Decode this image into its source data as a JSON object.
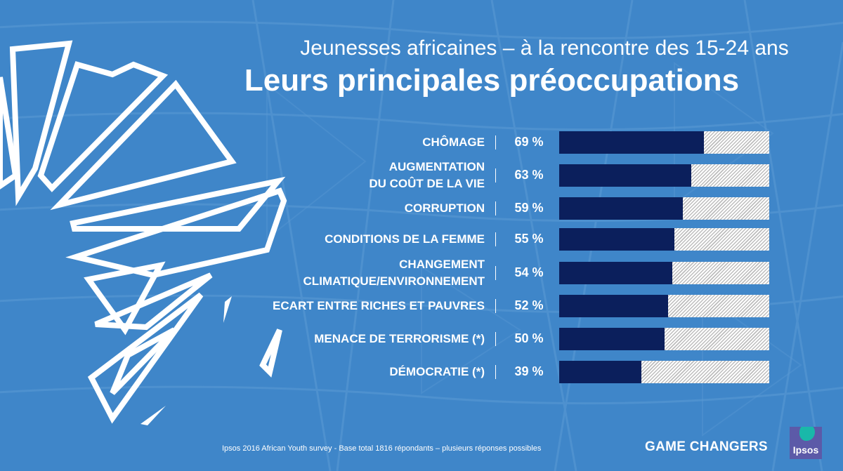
{
  "header": {
    "subtitle": "Jeunesses africaines – à la rencontre des 15-24 ans",
    "title": "Leurs principales préoccupations"
  },
  "chart_data": {
    "type": "bar",
    "orientation": "horizontal",
    "categories": [
      "CHÔMAGE",
      "AUGMENTATION DU COÛT DE LA VIE",
      "CORRUPTION",
      "CONDITIONS DE LA FEMME",
      "CHANGEMENT CLIMATIQUE/ENVIRONNEMENT",
      "ECART ENTRE RICHES ET PAUVRES",
      "MENACE DE TERRORISME (*)",
      "DÉMOCRATIE (*)"
    ],
    "rows": [
      {
        "label_line1": "CHÔMAGE",
        "label_line2": "",
        "value": 69,
        "value_label": "69 %"
      },
      {
        "label_line1": "AUGMENTATION",
        "label_line2": "DU COÛT DE LA VIE",
        "value": 63,
        "value_label": "63 %"
      },
      {
        "label_line1": "CORRUPTION",
        "label_line2": "",
        "value": 59,
        "value_label": "59 %"
      },
      {
        "label_line1": "CONDITIONS DE LA FEMME",
        "label_line2": "",
        "value": 55,
        "value_label": "55 %"
      },
      {
        "label_line1": "CHANGEMENT",
        "label_line2": "CLIMATIQUE/ENVIRONNEMENT",
        "value": 54,
        "value_label": "54 %"
      },
      {
        "label_line1": "ECART ENTRE RICHES ET PAUVRES",
        "label_line2": "",
        "value": 52,
        "value_label": "52 %"
      },
      {
        "label_line1": "MENACE DE TERRORISME (*)",
        "label_line2": "",
        "value": 50,
        "value_label": "50 %"
      },
      {
        "label_line1": "DÉMOCRATIE (*)",
        "label_line2": "",
        "value": 39,
        "value_label": "39 %"
      }
    ],
    "values": [
      69,
      63,
      59,
      55,
      54,
      52,
      50,
      39
    ],
    "unit": "%",
    "xlim": [
      0,
      100
    ],
    "grid": false,
    "colors": {
      "fill": "#0b1f5c",
      "remainder": "hatched-light-grey",
      "background": "#3f86c9"
    }
  },
  "footer": {
    "note": "Ipsos 2016 African Youth survey  - Base total 1816 répondants – plusieurs réponses possibles",
    "brand": "GAME CHANGERS",
    "logo_text": "Ipsos"
  }
}
